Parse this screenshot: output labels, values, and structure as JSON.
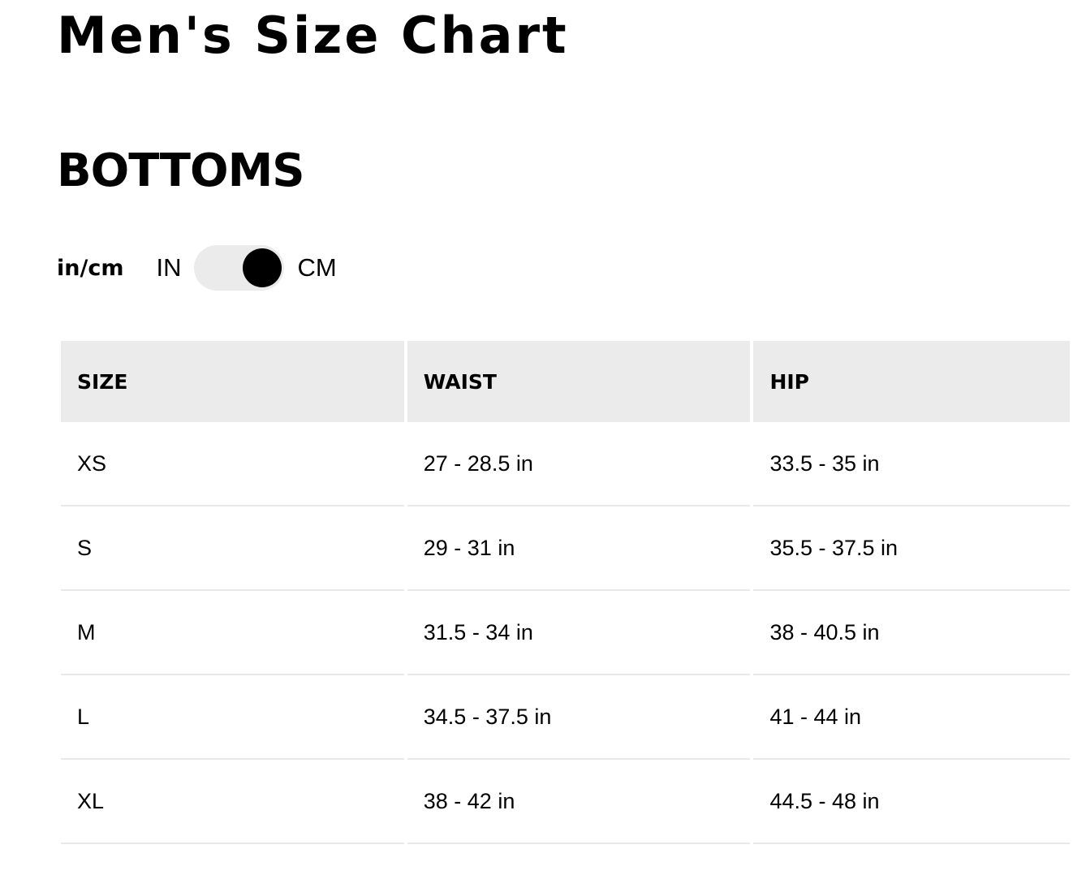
{
  "title": "Men's Size Chart",
  "section": "BOTTOMS",
  "units": {
    "label": "in/cm",
    "option_in": "IN",
    "option_cm": "CM",
    "selected": "CM"
  },
  "table": {
    "headers": [
      "SIZE",
      "WAIST",
      "HIP"
    ],
    "rows": [
      [
        "XS",
        "27 - 28.5 in",
        "33.5 - 35 in"
      ],
      [
        "S",
        "29 - 31 in",
        "35.5 - 37.5 in"
      ],
      [
        "M",
        "31.5 - 34 in",
        "38 - 40.5 in"
      ],
      [
        "L",
        "34.5 - 37.5 in",
        "41 - 44 in"
      ],
      [
        "XL",
        "38 - 42 in",
        "44.5 - 48 in"
      ]
    ]
  }
}
